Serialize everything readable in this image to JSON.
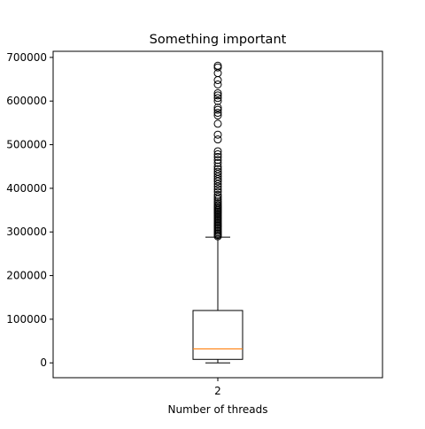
{
  "chart_data": {
    "type": "boxplot",
    "title": "Something important",
    "xlabel": "Number of threads",
    "ylabel": "",
    "categories": [
      "2"
    ],
    "ylim": [
      -34000,
      714000
    ],
    "yticks": [
      0,
      100000,
      200000,
      300000,
      400000,
      500000,
      600000,
      700000
    ],
    "ytick_labels": [
      "0",
      "100000",
      "200000",
      "300000",
      "400000",
      "500000",
      "600000",
      "700000"
    ],
    "boxes": [
      {
        "category": "2",
        "whisker_low": 0,
        "q1": 8000,
        "median": 32000,
        "q3": 120000,
        "whisker_high": 288000,
        "outliers": [
          290000,
          293000,
          296000,
          299000,
          302000,
          305000,
          308000,
          311000,
          314000,
          317000,
          320000,
          323000,
          326000,
          329000,
          332000,
          335000,
          338000,
          341000,
          344000,
          347000,
          350000,
          353000,
          356000,
          359000,
          362000,
          366000,
          370000,
          375000,
          380000,
          385000,
          392000,
          398000,
          404000,
          410000,
          416000,
          421000,
          427000,
          433000,
          438000,
          444000,
          450000,
          458000,
          465000,
          472000,
          478000,
          485000,
          512000,
          523000,
          548000,
          567000,
          573000,
          580000,
          585000,
          600000,
          607000,
          613000,
          618000,
          638000,
          648000,
          664000,
          677000,
          681000
        ]
      }
    ],
    "colors": {
      "box": "#000000",
      "median": "#ff7f0e",
      "outlier_edge": "#000000"
    }
  }
}
